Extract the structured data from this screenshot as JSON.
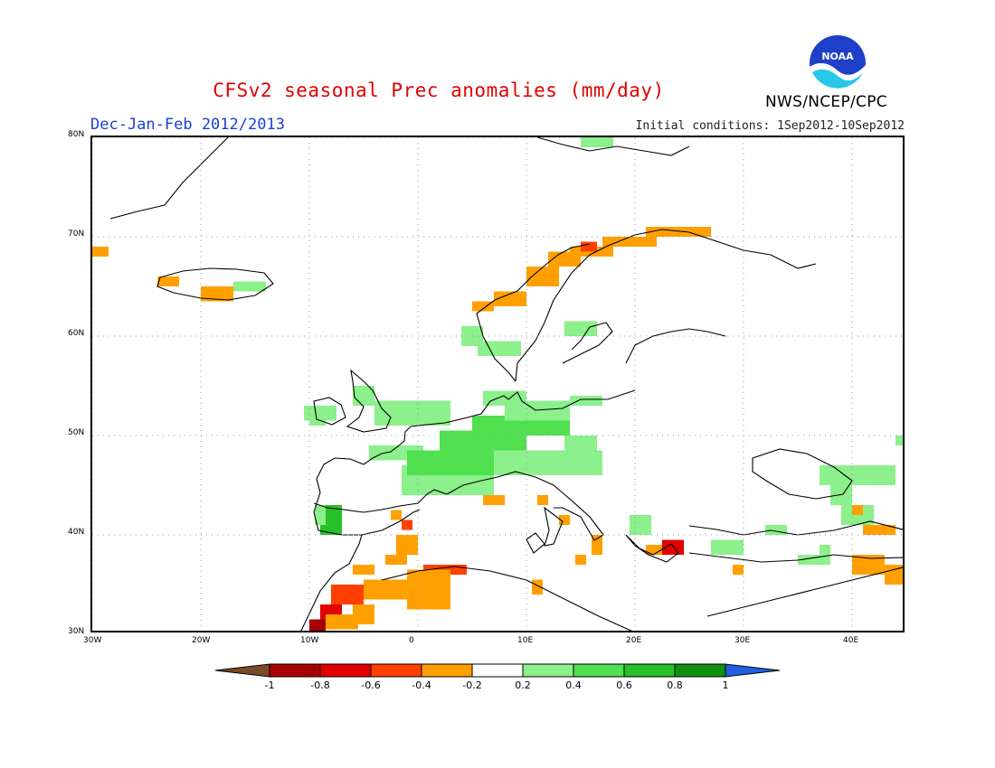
{
  "title": "CFSv2 seasonal Prec anomalies (mm/day)",
  "period": "Dec-Jan-Feb 2012/2013",
  "initial_conditions": "Initial conditions: 1Sep2012-10Sep2012",
  "organization": "NWS/NCEP/CPC",
  "logo_text": "NOAA",
  "map": {
    "lon_range": [
      -30,
      45
    ],
    "lat_range": [
      30,
      80
    ],
    "lon_ticks": [
      "30W",
      "20W",
      "10W",
      "0",
      "10E",
      "20E",
      "30E",
      "40E"
    ],
    "lat_ticks": [
      "80N",
      "70N",
      "60N",
      "50N",
      "40N",
      "30N"
    ],
    "grid": "dotted",
    "anomaly_cells": [
      {
        "lon": -30,
        "lat": 68,
        "w": 1.5,
        "h": 1,
        "v": -0.3
      },
      {
        "lon": -24,
        "lat": 65,
        "w": 2,
        "h": 1,
        "v": -0.3
      },
      {
        "lon": -20,
        "lat": 63.5,
        "w": 3,
        "h": 1.5,
        "v": -0.3
      },
      {
        "lon": -17,
        "lat": 64.5,
        "w": 3,
        "h": 1,
        "v": 0.3
      },
      {
        "lon": 5,
        "lat": 62.5,
        "w": 2,
        "h": 1,
        "v": -0.3
      },
      {
        "lon": 7,
        "lat": 63,
        "w": 3,
        "h": 1.5,
        "v": -0.3
      },
      {
        "lon": 10,
        "lat": 65,
        "w": 3,
        "h": 2,
        "v": -0.3
      },
      {
        "lon": 12,
        "lat": 67,
        "w": 3,
        "h": 1.5,
        "v": -0.3
      },
      {
        "lon": 14,
        "lat": 68,
        "w": 4,
        "h": 1,
        "v": -0.3
      },
      {
        "lon": 15,
        "lat": 68.5,
        "w": 1.5,
        "h": 1,
        "v": -0.5
      },
      {
        "lon": 17,
        "lat": 69,
        "w": 5,
        "h": 1,
        "v": -0.3
      },
      {
        "lon": 21,
        "lat": 70,
        "w": 6,
        "h": 1,
        "v": -0.3
      },
      {
        "lon": 13.5,
        "lat": 60,
        "w": 3,
        "h": 1.5,
        "v": 0.3
      },
      {
        "lon": 4,
        "lat": 59,
        "w": 2,
        "h": 2,
        "v": 0.3
      },
      {
        "lon": 5.5,
        "lat": 58,
        "w": 4,
        "h": 1.5,
        "v": 0.3
      },
      {
        "lon": -10.5,
        "lat": 51.5,
        "w": 3,
        "h": 1.5,
        "v": 0.3
      },
      {
        "lon": -10,
        "lat": 51,
        "w": 1.5,
        "h": 1,
        "v": 0.3
      },
      {
        "lon": -6,
        "lat": 53,
        "w": 2,
        "h": 2,
        "v": 0.3
      },
      {
        "lon": -4,
        "lat": 51,
        "w": 7,
        "h": 2.5,
        "v": 0.3
      },
      {
        "lon": -4.5,
        "lat": 47.5,
        "w": 5,
        "h": 1.5,
        "v": 0.3
      },
      {
        "lon": -1.5,
        "lat": 44,
        "w": 4,
        "h": 3,
        "v": 0.3
      },
      {
        "lon": -1,
        "lat": 46,
        "w": 8,
        "h": 2.5,
        "v": 0.5
      },
      {
        "lon": 2,
        "lat": 48.5,
        "w": 8,
        "h": 2,
        "v": 0.5
      },
      {
        "lon": 5,
        "lat": 50.5,
        "w": 4,
        "h": 1.5,
        "v": 0.5
      },
      {
        "lon": 7,
        "lat": 50,
        "w": 7,
        "h": 2,
        "v": 0.5
      },
      {
        "lon": 8,
        "lat": 51.5,
        "w": 6,
        "h": 2,
        "v": 0.3
      },
      {
        "lon": 7,
        "lat": 46,
        "w": 10,
        "h": 2.5,
        "v": 0.3
      },
      {
        "lon": 2,
        "lat": 44,
        "w": 5,
        "h": 2,
        "v": 0.3
      },
      {
        "lon": 14,
        "lat": 53,
        "w": 3,
        "h": 1,
        "v": 0.3
      },
      {
        "lon": 13.5,
        "lat": 48,
        "w": 3,
        "h": 2,
        "v": 0.3
      },
      {
        "lon": 6,
        "lat": 53,
        "w": 4,
        "h": 1.5,
        "v": 0.3
      },
      {
        "lon": -9,
        "lat": 40,
        "w": 2,
        "h": 3,
        "v": 0.7
      },
      {
        "lon": -9.5,
        "lat": 41,
        "w": 1,
        "h": 2,
        "v": 0.3
      },
      {
        "lon": -2.5,
        "lat": 41.5,
        "w": 1,
        "h": 1,
        "v": -0.3
      },
      {
        "lon": -1.5,
        "lat": 40.5,
        "w": 1,
        "h": 1,
        "v": -0.5
      },
      {
        "lon": 6,
        "lat": 43,
        "w": 2,
        "h": 1,
        "v": -0.3
      },
      {
        "lon": 11,
        "lat": 43,
        "w": 1,
        "h": 1,
        "v": -0.3
      },
      {
        "lon": 13,
        "lat": 41,
        "w": 1,
        "h": 1,
        "v": -0.3
      },
      {
        "lon": -2,
        "lat": 38,
        "w": 2,
        "h": 2,
        "v": -0.3
      },
      {
        "lon": -3,
        "lat": 37,
        "w": 2,
        "h": 1,
        "v": -0.3
      },
      {
        "lon": -6,
        "lat": 36,
        "w": 2,
        "h": 1,
        "v": -0.3
      },
      {
        "lon": 0.5,
        "lat": 36,
        "w": 4,
        "h": 1,
        "v": -0.5
      },
      {
        "lon": -1,
        "lat": 32.5,
        "w": 4,
        "h": 4,
        "v": -0.3
      },
      {
        "lon": -5,
        "lat": 33.5,
        "w": 4,
        "h": 2,
        "v": -0.3
      },
      {
        "lon": -8,
        "lat": 33,
        "w": 3,
        "h": 2,
        "v": -0.5
      },
      {
        "lon": -9,
        "lat": 31,
        "w": 2,
        "h": 2,
        "v": -0.6
      },
      {
        "lon": -8.5,
        "lat": 30.5,
        "w": 3,
        "h": 1.5,
        "v": -0.3
      },
      {
        "lon": -10,
        "lat": 30,
        "w": 1.5,
        "h": 1.5,
        "v": -0.8
      },
      {
        "lon": -6,
        "lat": 31,
        "w": 2,
        "h": 2,
        "v": -0.3
      },
      {
        "lon": 10.5,
        "lat": 34,
        "w": 1,
        "h": 1.5,
        "v": -0.3
      },
      {
        "lon": 16,
        "lat": 38,
        "w": 1,
        "h": 2,
        "v": -0.3
      },
      {
        "lon": 14.5,
        "lat": 37,
        "w": 1,
        "h": 1,
        "v": -0.3
      },
      {
        "lon": 19.5,
        "lat": 40,
        "w": 2,
        "h": 2,
        "v": 0.3
      },
      {
        "lon": 21,
        "lat": 38,
        "w": 3,
        "h": 1,
        "v": -0.3
      },
      {
        "lon": 22.5,
        "lat": 38,
        "w": 2,
        "h": 1.5,
        "v": -0.6
      },
      {
        "lon": 27,
        "lat": 38,
        "w": 3,
        "h": 1.5,
        "v": 0.3
      },
      {
        "lon": 32,
        "lat": 40,
        "w": 2,
        "h": 1,
        "v": 0.3
      },
      {
        "lon": 35,
        "lat": 37,
        "w": 3,
        "h": 1,
        "v": 0.3
      },
      {
        "lon": 37,
        "lat": 38,
        "w": 1,
        "h": 1,
        "v": 0.3
      },
      {
        "lon": 29,
        "lat": 36,
        "w": 1,
        "h": 1,
        "v": -0.3
      },
      {
        "lon": 37,
        "lat": 45,
        "w": 7,
        "h": 2,
        "v": 0.3
      },
      {
        "lon": 38,
        "lat": 43,
        "w": 2,
        "h": 2,
        "v": 0.3
      },
      {
        "lon": 39,
        "lat": 41,
        "w": 3,
        "h": 2,
        "v": 0.3
      },
      {
        "lon": 41,
        "lat": 40,
        "w": 3,
        "h": 1,
        "v": -0.3
      },
      {
        "lon": 40,
        "lat": 42,
        "w": 1,
        "h": 1,
        "v": -0.3
      },
      {
        "lon": 40,
        "lat": 36,
        "w": 3,
        "h": 2,
        "v": -0.3
      },
      {
        "lon": 43,
        "lat": 35,
        "w": 2,
        "h": 2,
        "v": -0.3
      },
      {
        "lon": 44,
        "lat": 49,
        "w": 1,
        "h": 1,
        "v": 0.3
      },
      {
        "lon": 15,
        "lat": 79,
        "w": 3,
        "h": 1,
        "v": 0.3
      }
    ]
  },
  "colorbar": {
    "labels": [
      "-1",
      "-0.8",
      "-0.6",
      "-0.4",
      "-0.2",
      "0.2",
      "0.4",
      "0.6",
      "0.8",
      "1"
    ],
    "colors": [
      "#a80000",
      "#e00000",
      "#ff4000",
      "#ffa000",
      "#ffffff",
      "#8cf08c",
      "#50e050",
      "#28c028",
      "#109010"
    ],
    "below_color": "#7a4a28",
    "above_color": "#2060e0"
  }
}
